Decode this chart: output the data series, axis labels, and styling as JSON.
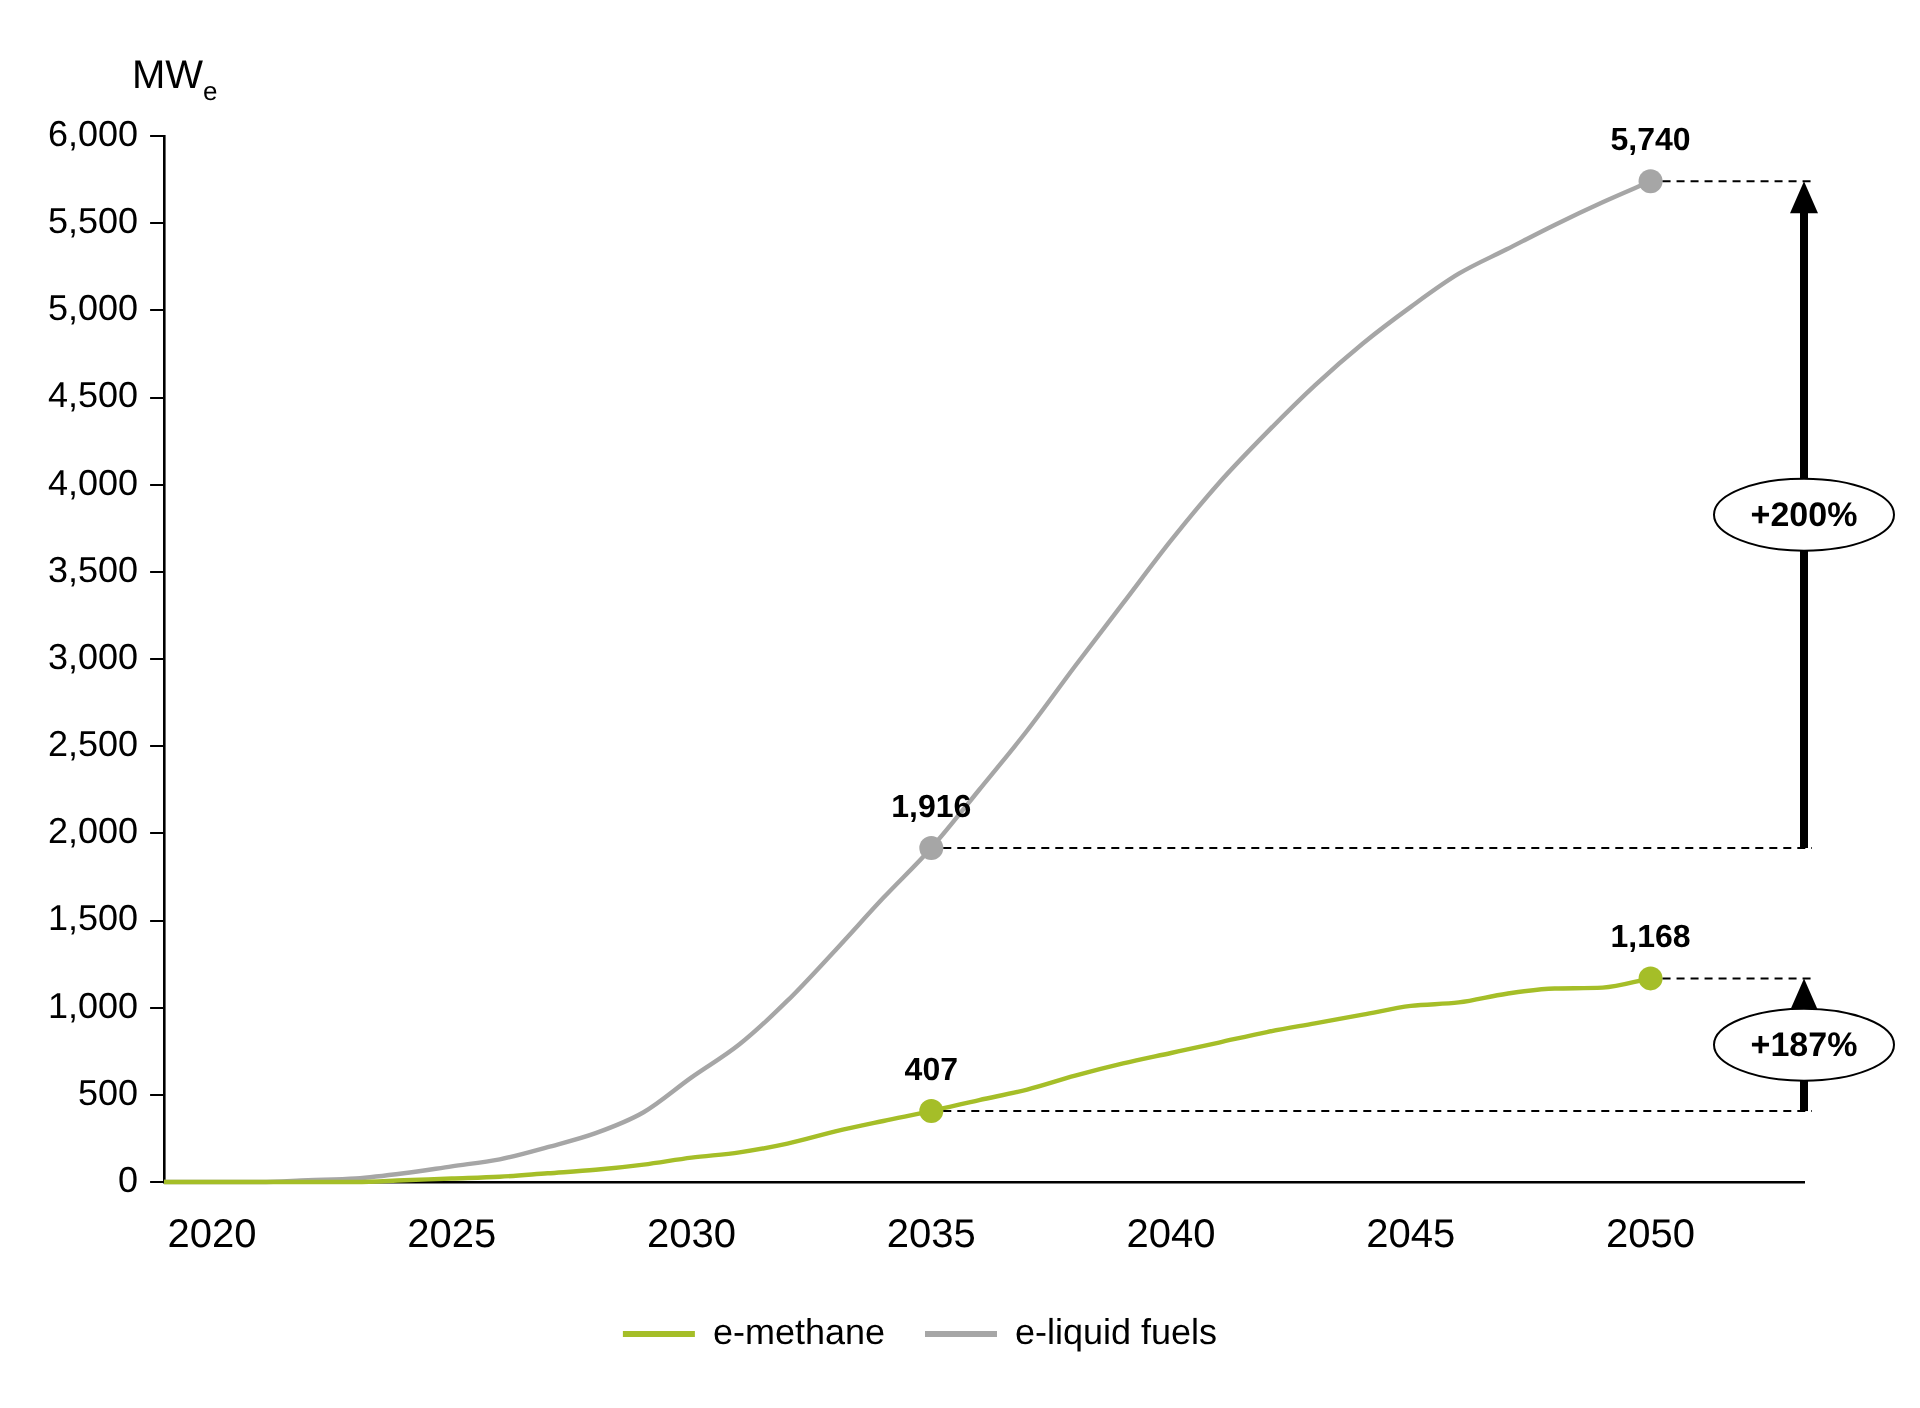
{
  "chart_data": {
    "type": "line",
    "ylabel": "MW$_{e}$",
    "x": [
      2019,
      2020,
      2021,
      2022,
      2023,
      2024,
      2025,
      2026,
      2027,
      2028,
      2029,
      2030,
      2031,
      2032,
      2033,
      2034,
      2035,
      2036,
      2037,
      2038,
      2039,
      2040,
      2041,
      2042,
      2043,
      2044,
      2045,
      2046,
      2047,
      2048,
      2049,
      2050
    ],
    "series": [
      {
        "name": "e-methane",
        "color": "#a5be28",
        "values": [
          0,
          0,
          0,
          0,
          0,
          10,
          20,
          30,
          50,
          70,
          100,
          140,
          170,
          220,
          290,
          350,
          407,
          470,
          530,
          610,
          680,
          740,
          800,
          860,
          910,
          960,
          1010,
          1030,
          1080,
          1110,
          1115,
          1168
        ],
        "value_labels": [
          null,
          null,
          null,
          null,
          null,
          null,
          null,
          null,
          null,
          null,
          null,
          null,
          null,
          null,
          null,
          null,
          "407",
          null,
          null,
          null,
          null,
          null,
          null,
          null,
          null,
          null,
          null,
          null,
          null,
          null,
          null,
          "1,168"
        ]
      },
      {
        "name": "e-liquid fuels",
        "color": "#a6a6a6",
        "values": [
          0,
          0,
          0,
          10,
          20,
          50,
          90,
          130,
          200,
          280,
          400,
          600,
          790,
          1040,
          1330,
          1630,
          1916,
          2250,
          2590,
          2960,
          3320,
          3680,
          4010,
          4300,
          4570,
          4810,
          5020,
          5210,
          5350,
          5490,
          5620,
          5740
        ],
        "value_labels": [
          null,
          null,
          null,
          null,
          null,
          null,
          null,
          null,
          null,
          null,
          null,
          null,
          null,
          null,
          null,
          null,
          "1,916",
          null,
          null,
          null,
          null,
          null,
          null,
          null,
          null,
          null,
          null,
          null,
          null,
          null,
          null,
          "5,740"
        ]
      }
    ],
    "xlim": [
      2019,
      2053.2
    ],
    "xticks": [
      2020,
      2025,
      2030,
      2035,
      2040,
      2045,
      2050
    ],
    "ylim": [
      0,
      6000
    ],
    "yticks": [
      {
        "value": 0,
        "label": "0"
      },
      {
        "value": 500,
        "label": "500"
      },
      {
        "value": 1000,
        "label": "1,000"
      },
      {
        "value": 1500,
        "label": "1,500"
      },
      {
        "value": 2000,
        "label": "2,000"
      },
      {
        "value": 2500,
        "label": "2,500"
      },
      {
        "value": 3000,
        "label": "3,000"
      },
      {
        "value": 3500,
        "label": "3,500"
      },
      {
        "value": 4000,
        "label": "4,000"
      },
      {
        "value": 4500,
        "label": "4,500"
      },
      {
        "value": 5000,
        "label": "5,000"
      },
      {
        "value": 5500,
        "label": "5,500"
      },
      {
        "value": 6000,
        "label": "6,000"
      }
    ],
    "annotations": [
      "+200%",
      "+187%"
    ],
    "legend": "bottom"
  }
}
